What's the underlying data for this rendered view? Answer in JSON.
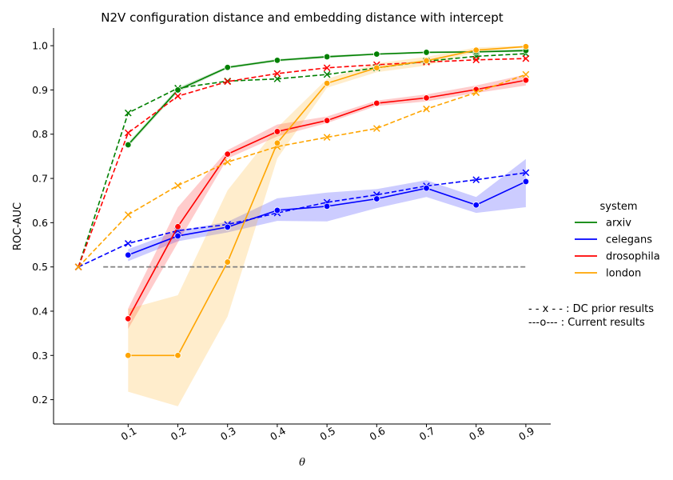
{
  "chart_data": {
    "type": "line",
    "title": "N2V configuration distance and embedding distance with intercept",
    "xlabel": "θ",
    "ylabel": "ROC-AUC",
    "xlim": [
      -0.05,
      0.95
    ],
    "ylim": [
      0.145,
      1.04
    ],
    "x_ticks": [
      "0.1",
      "0.2",
      "0.3",
      "0.4",
      "0.5",
      "0.6",
      "0.7",
      "0.8",
      "0.9"
    ],
    "y_ticks": [
      "0.2",
      "0.3",
      "0.4",
      "0.5",
      "0.6",
      "0.7",
      "0.8",
      "0.9",
      "1.0"
    ],
    "legend_title": "system",
    "legend_position": "right",
    "reference_line": {
      "y": 0.5,
      "x_start": 0.05,
      "x_end": 0.9,
      "color": "#808080",
      "style": "dashed"
    },
    "notes": [
      "- - x - - : DC prior results",
      "---o--- : Current results"
    ],
    "series": [
      {
        "name": "arxiv",
        "color": "#008000",
        "current": {
          "x": [
            0.1,
            0.2,
            0.3,
            0.4,
            0.5,
            0.6,
            0.7,
            0.8,
            0.9
          ],
          "y": [
            0.776,
            0.9,
            0.951,
            0.967,
            0.975,
            0.981,
            0.985,
            0.986,
            0.989
          ],
          "lower": [
            0.771,
            0.895,
            0.948,
            0.964,
            0.972,
            0.979,
            0.983,
            0.984,
            0.986
          ],
          "upper": [
            0.781,
            0.905,
            0.954,
            0.97,
            0.978,
            0.983,
            0.987,
            0.988,
            0.992
          ]
        },
        "dc_prior": {
          "x": [
            0.0,
            0.1,
            0.2,
            0.3,
            0.4,
            0.5,
            0.6,
            0.7,
            0.8,
            0.9
          ],
          "y": [
            0.5,
            0.848,
            0.904,
            0.92,
            0.925,
            0.935,
            0.95,
            0.965,
            0.976,
            0.982
          ]
        }
      },
      {
        "name": "celegans",
        "color": "#0000ff",
        "current": {
          "x": [
            0.1,
            0.2,
            0.3,
            0.4,
            0.5,
            0.6,
            0.7,
            0.8,
            0.9
          ],
          "y": [
            0.527,
            0.57,
            0.59,
            0.628,
            0.637,
            0.654,
            0.678,
            0.64,
            0.693
          ],
          "lower": [
            0.513,
            0.558,
            0.578,
            0.604,
            0.603,
            0.633,
            0.658,
            0.622,
            0.635
          ],
          "upper": [
            0.54,
            0.582,
            0.602,
            0.655,
            0.668,
            0.676,
            0.696,
            0.658,
            0.744
          ]
        },
        "dc_prior": {
          "x": [
            0.0,
            0.1,
            0.2,
            0.3,
            0.4,
            0.5,
            0.6,
            0.7,
            0.8,
            0.9
          ],
          "y": [
            0.5,
            0.553,
            0.582,
            0.596,
            0.622,
            0.646,
            0.663,
            0.683,
            0.697,
            0.713
          ]
        }
      },
      {
        "name": "drosophila",
        "color": "#ff0000",
        "current": {
          "x": [
            0.1,
            0.2,
            0.3,
            0.4,
            0.5,
            0.6,
            0.7,
            0.8,
            0.9
          ],
          "y": [
            0.383,
            0.591,
            0.755,
            0.806,
            0.831,
            0.87,
            0.882,
            0.901,
            0.922
          ],
          "lower": [
            0.36,
            0.555,
            0.745,
            0.795,
            0.825,
            0.864,
            0.874,
            0.893,
            0.91
          ],
          "upper": [
            0.406,
            0.635,
            0.764,
            0.822,
            0.84,
            0.876,
            0.89,
            0.91,
            0.935
          ]
        },
        "dc_prior": {
          "x": [
            0.0,
            0.1,
            0.2,
            0.3,
            0.4,
            0.5,
            0.6,
            0.7,
            0.8,
            0.9
          ],
          "y": [
            0.5,
            0.803,
            0.886,
            0.919,
            0.937,
            0.95,
            0.957,
            0.963,
            0.968,
            0.971
          ]
        }
      },
      {
        "name": "london",
        "color": "#ffa500",
        "current": {
          "x": [
            0.1,
            0.2,
            0.3,
            0.4,
            0.5,
            0.6,
            0.7,
            0.8,
            0.9
          ],
          "y": [
            0.3,
            0.3,
            0.511,
            0.78,
            0.915,
            0.95,
            0.966,
            0.99,
            0.998
          ],
          "lower": [
            0.218,
            0.185,
            0.388,
            0.745,
            0.905,
            0.94,
            0.955,
            0.985,
            0.996
          ],
          "upper": [
            0.405,
            0.436,
            0.673,
            0.815,
            0.925,
            0.96,
            0.975,
            0.996,
            1.0
          ]
        },
        "dc_prior": {
          "x": [
            0.0,
            0.1,
            0.2,
            0.3,
            0.4,
            0.5,
            0.6,
            0.7,
            0.8,
            0.9
          ],
          "y": [
            0.5,
            0.618,
            0.684,
            0.737,
            0.772,
            0.793,
            0.813,
            0.857,
            0.894,
            0.935
          ]
        }
      }
    ]
  }
}
